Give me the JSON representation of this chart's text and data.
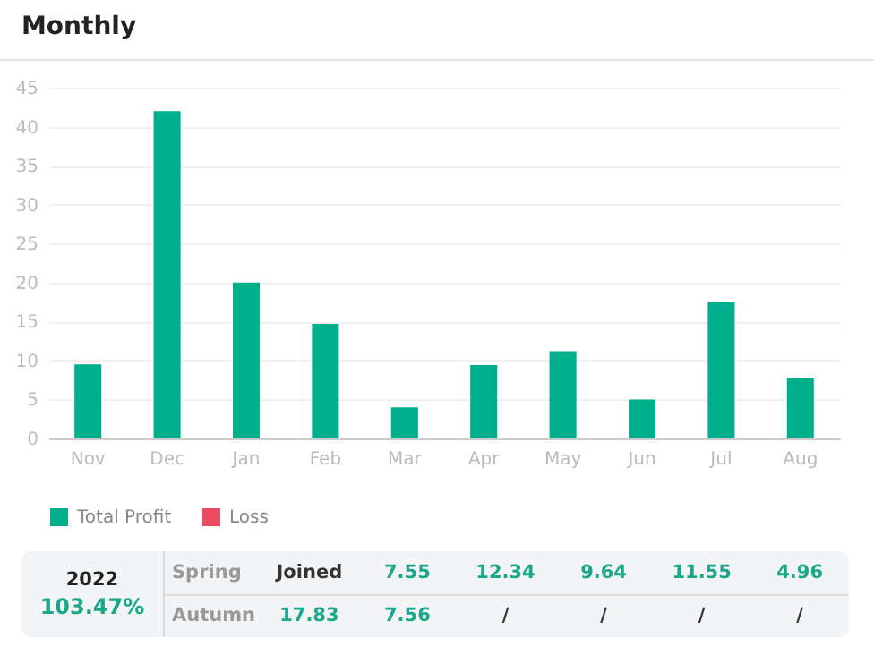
{
  "chart_data": [
    {
      "type": "bar",
      "title": "Monthly",
      "categories": [
        "Nov",
        "Dec",
        "Jan",
        "Feb",
        "Mar",
        "Apr",
        "May",
        "Jun",
        "Jul",
        "Aug"
      ],
      "series": [
        {
          "name": "Total Profit",
          "color": "#00b08c",
          "values": [
            9.5,
            42,
            20,
            14.7,
            4,
            9.4,
            11.2,
            5,
            17.5,
            7.8
          ]
        },
        {
          "name": "Loss",
          "color": "#e84a5f",
          "values": [
            null,
            null,
            null,
            null,
            null,
            null,
            null,
            null,
            null,
            null
          ]
        }
      ],
      "ylim": [
        0,
        45
      ],
      "yticks": [
        0,
        5,
        10,
        15,
        20,
        25,
        30,
        35,
        40,
        45
      ],
      "grid": "y",
      "legend": "bottom"
    },
    {
      "type": "other",
      "annotations": [
        "2022",
        "103.47%",
        "Spring",
        "Joined",
        "7.55",
        "12.34",
        "9.64",
        "11.55",
        "4.96",
        "Autumn",
        "17.83",
        "7.56",
        "/",
        "/",
        "/",
        "/"
      ]
    }
  ]
}
